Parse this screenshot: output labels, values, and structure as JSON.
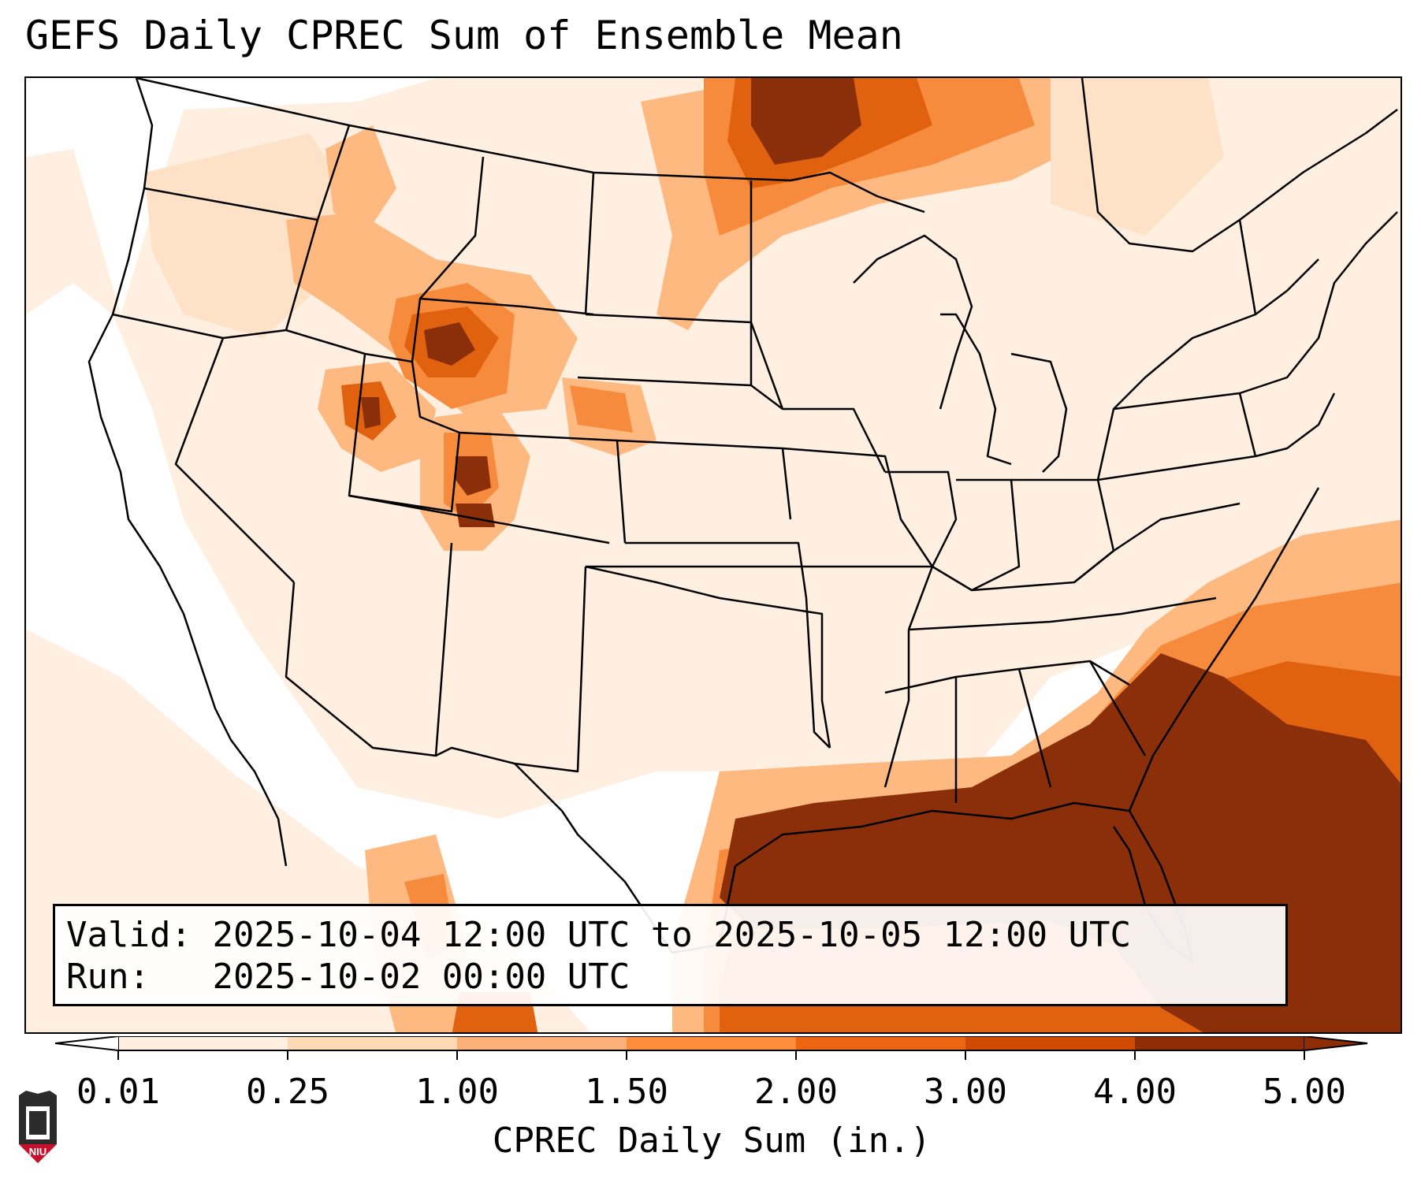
{
  "title": "GEFS Daily CPREC Sum of Ensemble Mean",
  "info": {
    "valid_label": "Valid:",
    "valid_value": "2025-10-04 12:00 UTC to 2025-10-05 12:00 UTC",
    "run_label": "Run:",
    "run_value": "2025-10-02 00:00 UTC"
  },
  "colorbar": {
    "label": "CPREC Daily Sum (in.)",
    "ticks": [
      "0.01",
      "0.25",
      "1.00",
      "1.50",
      "2.00",
      "3.00",
      "4.00",
      "5.00"
    ],
    "colors": [
      "#feefe1",
      "#fdd9b5",
      "#fdb077",
      "#fd8c3b",
      "#ee6511",
      "#cf4a03",
      "#8e2c05"
    ]
  },
  "map": {
    "region": "Continental United States",
    "precip_colors": {
      "light": "#feefe1",
      "light2": "#fde2c8",
      "mid": "#fdb980",
      "orange": "#f78b3d",
      "deep": "#e0620f",
      "max": "#8b2f0a"
    }
  },
  "logo": {
    "text": "NIU",
    "colors": {
      "shield": "#c8102e",
      "tower": "#2b2b2b"
    }
  }
}
